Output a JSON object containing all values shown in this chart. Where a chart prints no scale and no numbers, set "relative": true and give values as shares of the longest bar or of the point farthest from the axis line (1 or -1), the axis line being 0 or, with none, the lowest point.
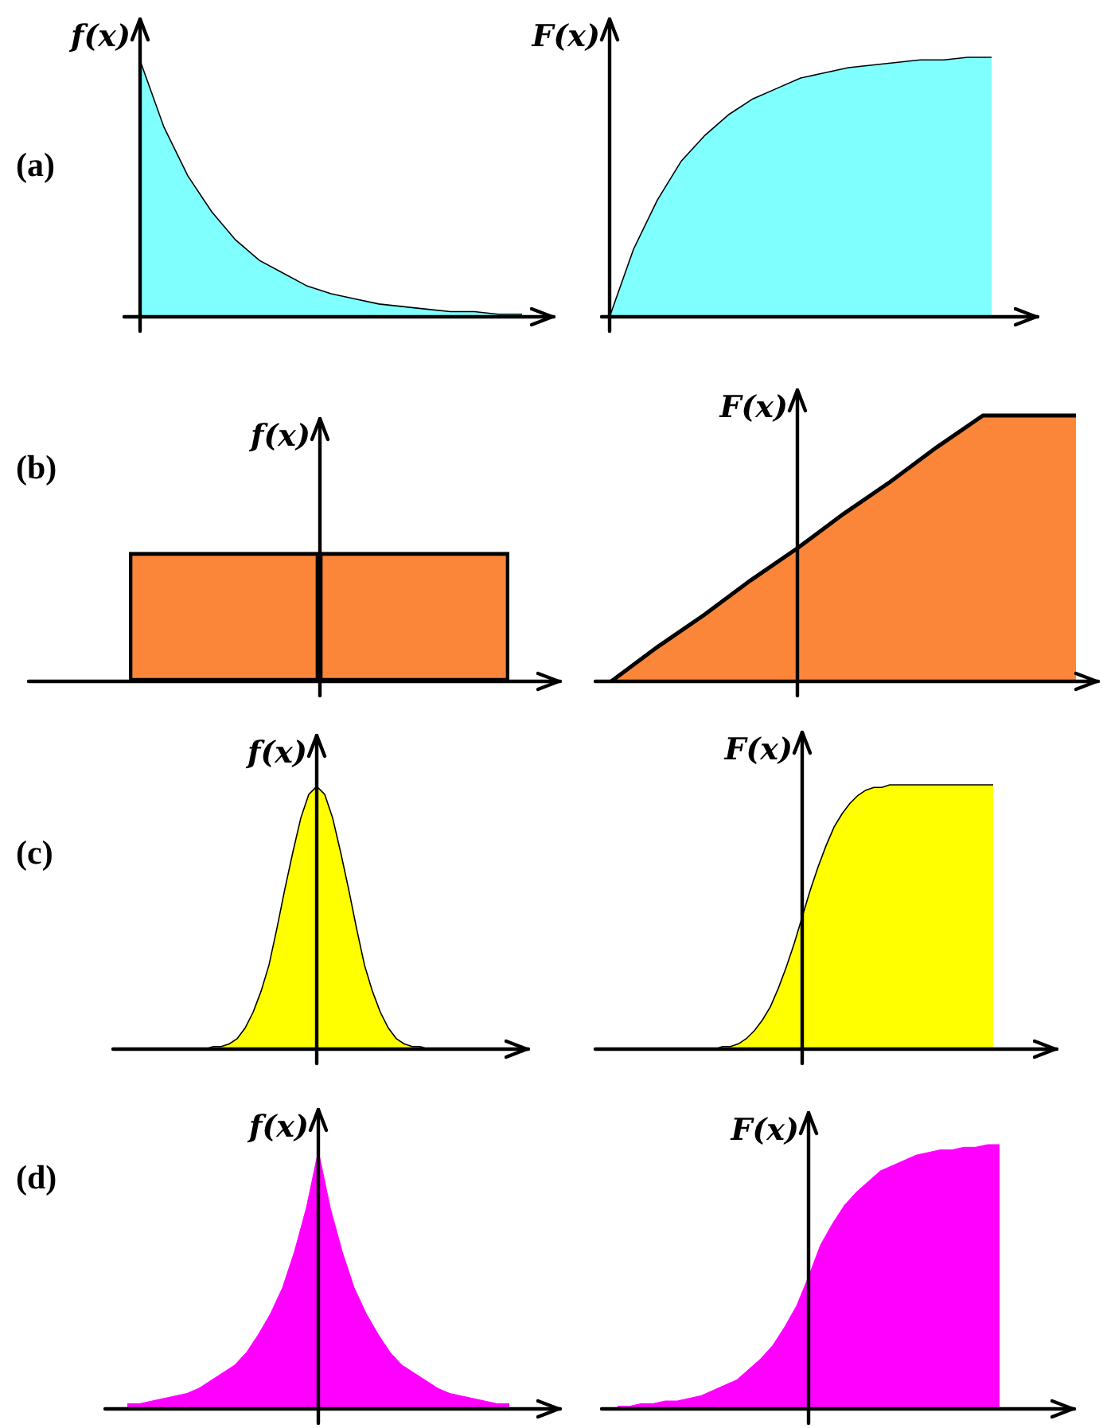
{
  "chart_data": [
    {
      "type": "area",
      "relative": true,
      "ylabel": "f(x)",
      "annotations": [
        "(a)"
      ],
      "color": "#80ffff",
      "categories": [
        null,
        null,
        null,
        null,
        null,
        null,
        null,
        null,
        null,
        null,
        null,
        null,
        null,
        null,
        null,
        null,
        null
      ],
      "values": [
        1,
        0.74,
        0.55,
        0.41,
        0.3,
        0.22,
        0.17,
        0.12,
        0.09,
        0.07,
        0.05,
        0.04,
        0.03,
        0.02,
        0.02,
        0.01,
        0.01
      ]
    },
    {
      "type": "area",
      "relative": true,
      "ylabel": "F(x)",
      "color": "#80ffff",
      "categories": [
        null,
        null,
        null,
        null,
        null,
        null,
        null,
        null,
        null,
        null,
        null,
        null,
        null,
        null,
        null,
        null,
        null
      ],
      "values": [
        0,
        0.26,
        0.45,
        0.6,
        0.7,
        0.78,
        0.84,
        0.88,
        0.92,
        0.94,
        0.96,
        0.97,
        0.98,
        0.99,
        0.99,
        1,
        1
      ]
    },
    {
      "type": "bar",
      "relative": true,
      "ylabel": "f(x)",
      "annotations": [
        "(b)"
      ],
      "color": "#fb863a",
      "categories": [
        null,
        null
      ],
      "values": [
        1,
        1
      ]
    },
    {
      "type": "area",
      "relative": true,
      "ylabel": "F(x)",
      "color": "#fb863a",
      "categories": [
        null,
        null,
        null,
        null,
        null,
        null,
        null,
        null,
        null,
        null,
        null
      ],
      "values": [
        0,
        0.13,
        0.25,
        0.38,
        0.5,
        0.63,
        0.75,
        0.88,
        1,
        1,
        1
      ]
    },
    {
      "type": "area",
      "relative": true,
      "ylabel": "f(x)",
      "annotations": [
        "(c)"
      ],
      "color": "#ffff00",
      "categories": [
        null,
        null,
        null,
        null,
        null,
        null,
        null,
        null,
        null,
        null,
        null,
        null,
        null,
        null,
        null,
        null,
        null,
        null,
        null,
        null,
        null,
        null,
        null,
        null,
        null,
        null,
        null,
        null,
        null
      ],
      "values": [
        0,
        0.01,
        0.01,
        0.02,
        0.04,
        0.08,
        0.14,
        0.22,
        0.32,
        0.46,
        0.61,
        0.75,
        0.88,
        0.97,
        1,
        0.97,
        0.88,
        0.75,
        0.61,
        0.46,
        0.32,
        0.22,
        0.14,
        0.08,
        0.04,
        0.02,
        0.01,
        0.01,
        0
      ]
    },
    {
      "type": "area",
      "relative": true,
      "ylabel": "F(x)",
      "color": "#ffff00",
      "categories": [
        null,
        null,
        null,
        null,
        null,
        null,
        null,
        null,
        null,
        null,
        null,
        null,
        null,
        null,
        null,
        null,
        null,
        null,
        null,
        null,
        null,
        null,
        null,
        null,
        null,
        null,
        null,
        null,
        null,
        null,
        null,
        null,
        null,
        null,
        null,
        null,
        null,
        null,
        null
      ],
      "values": [
        0,
        0,
        0,
        0,
        0.01,
        0.01,
        0.02,
        0.04,
        0.07,
        0.11,
        0.16,
        0.23,
        0.31,
        0.4,
        0.5,
        0.6,
        0.69,
        0.77,
        0.84,
        0.89,
        0.93,
        0.96,
        0.98,
        0.99,
        0.99,
        1,
        1,
        1,
        1,
        1,
        1,
        1,
        1,
        1,
        1,
        1,
        1,
        1,
        1
      ]
    },
    {
      "type": "area",
      "relative": true,
      "ylabel": "f(x)",
      "annotations": [
        "(d)"
      ],
      "color": "#ff00ff",
      "categories": [
        null,
        null,
        null,
        null,
        null,
        null,
        null,
        null,
        null,
        null,
        null,
        null,
        null,
        null,
        null,
        null,
        null,
        null,
        null,
        null,
        null,
        null,
        null,
        null,
        null,
        null,
        null,
        null,
        null,
        null,
        null,
        null,
        null
      ],
      "values": [
        0.02,
        0.02,
        0.03,
        0.04,
        0.05,
        0.06,
        0.08,
        0.11,
        0.14,
        0.17,
        0.22,
        0.29,
        0.37,
        0.47,
        0.61,
        0.78,
        1,
        0.78,
        0.61,
        0.47,
        0.37,
        0.29,
        0.22,
        0.17,
        0.14,
        0.11,
        0.08,
        0.06,
        0.05,
        0.04,
        0.03,
        0.02,
        0.02
      ]
    },
    {
      "type": "area",
      "relative": true,
      "ylabel": "F(x)",
      "color": "#ff00ff",
      "categories": [
        null,
        null,
        null,
        null,
        null,
        null,
        null,
        null,
        null,
        null,
        null,
        null,
        null,
        null,
        null,
        null,
        null,
        null,
        null,
        null,
        null,
        null,
        null,
        null,
        null,
        null,
        null,
        null,
        null,
        null,
        null,
        null,
        null
      ],
      "values": [
        0.01,
        0.01,
        0.02,
        0.02,
        0.03,
        0.03,
        0.04,
        0.05,
        0.07,
        0.09,
        0.11,
        0.15,
        0.19,
        0.24,
        0.31,
        0.39,
        0.5,
        0.62,
        0.7,
        0.77,
        0.82,
        0.86,
        0.9,
        0.92,
        0.94,
        0.96,
        0.97,
        0.98,
        0.98,
        0.99,
        0.99,
        1,
        1
      ]
    }
  ]
}
